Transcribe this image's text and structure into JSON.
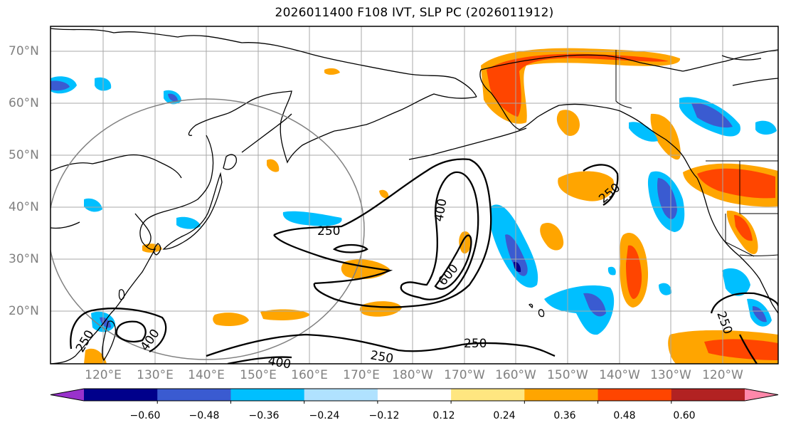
{
  "title": "2026011400 F108 IVT, SLP PC (2026011912)",
  "lat_labels": [
    "70°N",
    "60°N",
    "50°N",
    "40°N",
    "30°N",
    "20°N"
  ],
  "lon_labels": [
    "120°E",
    "130°E",
    "140°E",
    "150°E",
    "160°E",
    "170°E",
    "180°W",
    "170°W",
    "160°W",
    "150°W",
    "140°W",
    "130°W",
    "120°W"
  ],
  "colorbar": {
    "colors": [
      "#9932cc",
      "#00008b",
      "#3a5bd1",
      "#00bfff",
      "#b0e2ff",
      "#ffffff",
      "#ffe680",
      "#ffa500",
      "#ff4500",
      "#b22222",
      "#ff88aa"
    ],
    "ticks": [
      "−0.60",
      "−0.48",
      "−0.36",
      "−0.24",
      "−0.12",
      "0.12",
      "0.24",
      "0.36",
      "0.48",
      "0.60"
    ]
  },
  "contour_labels": [
    "250",
    "400",
    "600",
    "250",
    "250",
    "400",
    "250",
    "250",
    "400",
    "250"
  ]
}
